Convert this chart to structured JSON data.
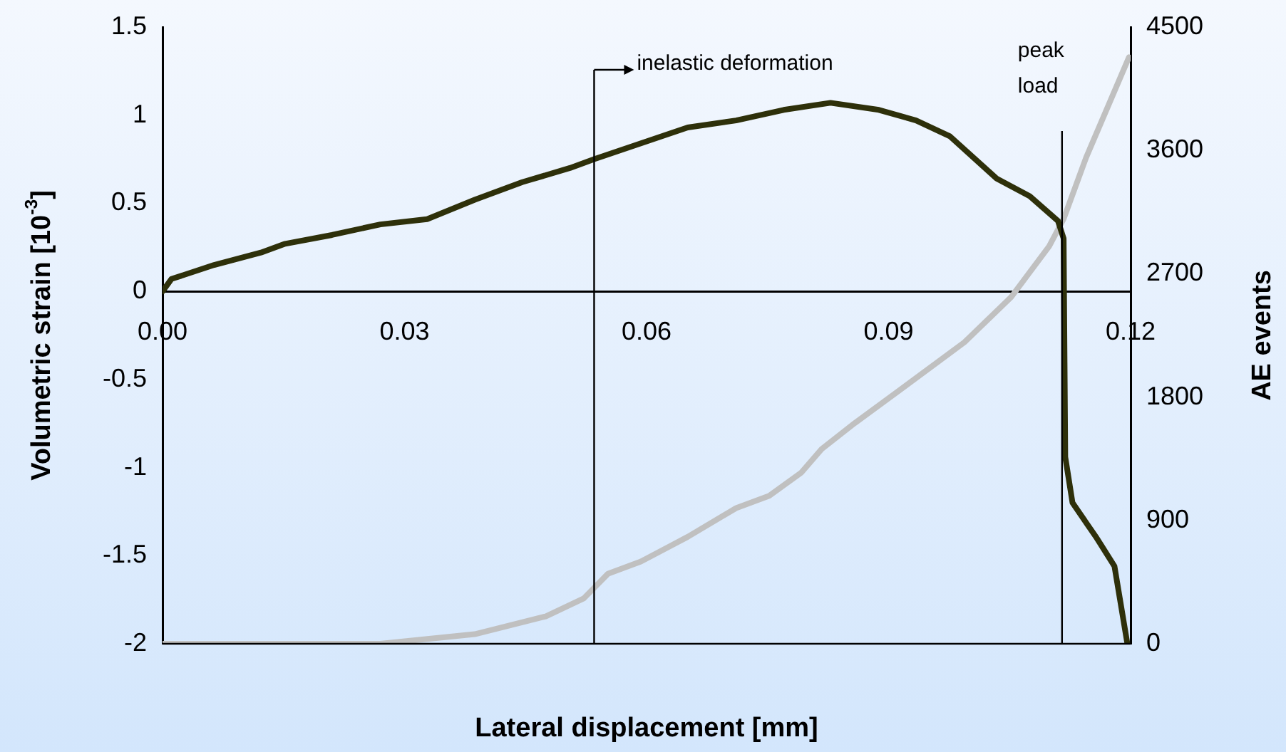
{
  "chart_data": {
    "type": "line",
    "xlabel": "Lateral displacement [mm]",
    "ylabel": "Volumetric strain [10$^{-3}$]",
    "y2label": "AE events",
    "xlim": [
      0,
      0.12
    ],
    "xticks": [
      {
        "value": 0,
        "label": "0.00"
      },
      0.03,
      0.06,
      0.09,
      0.12
    ],
    "ylim": [
      -2,
      1.5
    ],
    "yticks": [
      -2,
      -1.5,
      -1,
      -0.5,
      0,
      0.5,
      1,
      1.5
    ],
    "y2lim": [
      0,
      4500
    ],
    "y2ticks": [
      0,
      900,
      1800,
      2700,
      3600,
      4500
    ],
    "grid": false,
    "legend": false,
    "marker": "none",
    "line_style": "solid",
    "series": [
      {
        "color": "#2e300a",
        "x": [
          0,
          0.0011,
          0.0064,
          0.0122,
          0.0152,
          0.021,
          0.027,
          0.0328,
          0.0387,
          0.0446,
          0.0505,
          0.0535,
          0.0593,
          0.0651,
          0.0711,
          0.077,
          0.0828,
          0.0888,
          0.0934,
          0.0976,
          0.1034,
          0.1075,
          0.111,
          0.1117,
          0.1119,
          0.1128,
          0.1158,
          0.118,
          0.1196
        ],
        "values": [
          0,
          0.07,
          0.15,
          0.22,
          0.27,
          0.32,
          0.38,
          0.41,
          0.52,
          0.62,
          0.7,
          0.75,
          0.84,
          0.93,
          0.97,
          1.03,
          1.07,
          1.03,
          0.97,
          0.88,
          0.64,
          0.54,
          0.4,
          0.3,
          -0.94,
          -1.2,
          -1.4,
          -1.56,
          -2
        ]
      },
      {
        "color": "#c0c0c0",
        "axis": "y2",
        "x": [
          0,
          0.027,
          0.0387,
          0.0475,
          0.0522,
          0.0552,
          0.0593,
          0.0651,
          0.0711,
          0.0752,
          0.0792,
          0.0817,
          0.0858,
          0.0916,
          0.0994,
          0.1052,
          0.1099,
          0.1117,
          0.1145,
          0.1198
        ],
        "values": [
          0,
          0,
          70,
          200,
          330,
          510,
          600,
          780,
          990,
          1080,
          1250,
          1420,
          1610,
          1860,
          2200,
          2530,
          2900,
          3100,
          3550,
          4280
        ]
      }
    ],
    "ref_lines": [
      {
        "axis": "x",
        "value": 0.0535,
        "label": "inelastic deformation",
        "color": "#000000"
      },
      {
        "axis": "x",
        "value": 0.1115,
        "label": "peak load",
        "color": "#000000"
      }
    ]
  }
}
